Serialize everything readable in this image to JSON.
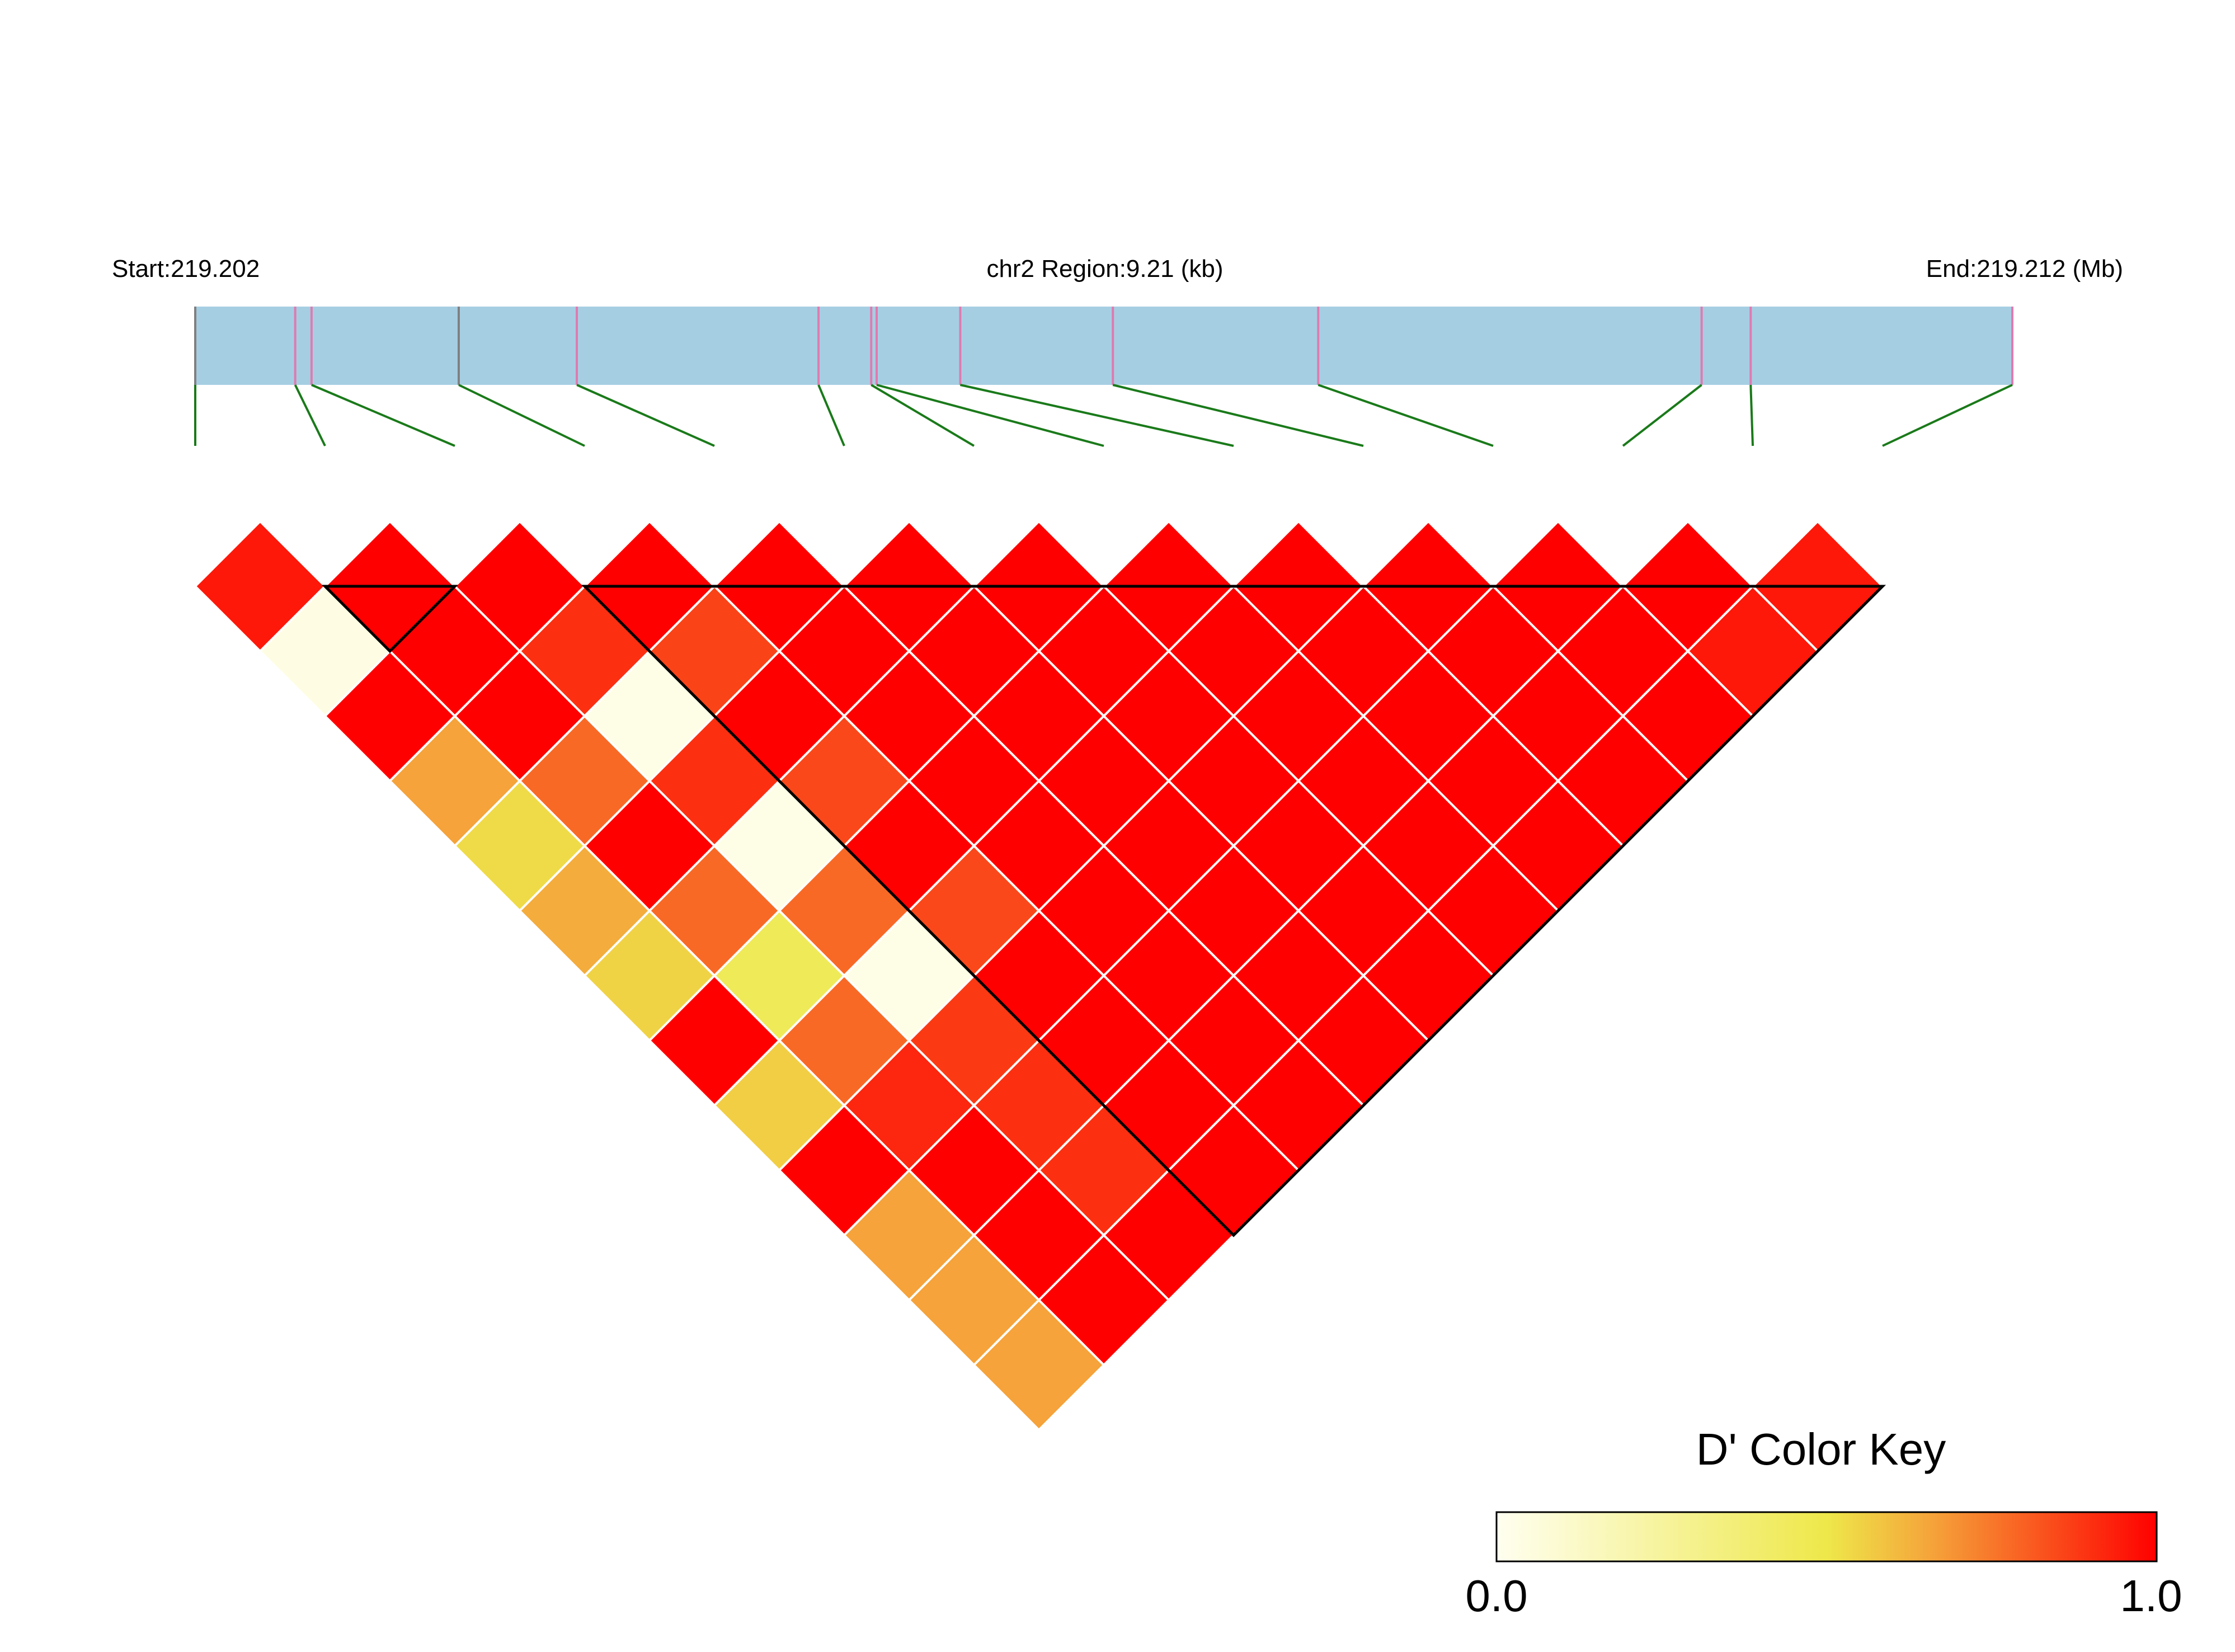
{
  "chart_data": {
    "type": "heatmap",
    "subtype": "LD triangle heatmap",
    "header": {
      "start_label": "Start:219.202",
      "region_label": "chr2 Region:9.21 (kb)",
      "end_label": "End:219.212 (Mb)"
    },
    "chromosome": "chr2",
    "region_start_mb": 219.202,
    "region_end_mb": 219.212,
    "region_length_kb": 9.21,
    "snp_count": 14,
    "snp_positions_frac": [
      0.0,
      0.055,
      0.064,
      0.145,
      0.21,
      0.343,
      0.372,
      0.375,
      0.421,
      0.505,
      0.618,
      0.829,
      0.856,
      1.0
    ],
    "snp_mark_colors": [
      "#808080",
      "#e07ab0",
      "#e07ab0",
      "#808080",
      "#e07ab0",
      "#e07ab0",
      "#e07ab0",
      "#e07ab0",
      "#e07ab0",
      "#e07ab0",
      "#e07ab0",
      "#e07ab0",
      "#e07ab0",
      "#e07ab0"
    ],
    "ld_metric": "D'",
    "dprime_by_diagonal": [
      [
        0.95,
        1.0,
        1.0,
        1.0,
        1.0,
        1.0,
        1.0,
        1.0,
        1.0,
        1.0,
        1.0,
        1.0,
        0.95
      ],
      [
        0.04,
        1.0,
        0.9,
        0.86,
        1.0,
        1.0,
        1.0,
        1.0,
        1.0,
        1.0,
        1.0,
        0.95
      ],
      [
        1.0,
        1.0,
        0.03,
        1.0,
        1.0,
        1.0,
        1.0,
        1.0,
        1.0,
        1.0,
        1.0
      ],
      [
        0.66,
        0.78,
        0.9,
        0.85,
        1.0,
        1.0,
        1.0,
        1.0,
        1.0,
        1.0
      ],
      [
        0.53,
        1.0,
        0.03,
        1.0,
        1.0,
        1.0,
        1.0,
        1.0,
        1.0
      ],
      [
        0.64,
        0.78,
        0.78,
        0.85,
        1.0,
        1.0,
        1.0,
        1.0
      ],
      [
        0.55,
        0.46,
        0.03,
        1.0,
        1.0,
        1.0,
        1.0
      ],
      [
        1.0,
        0.78,
        0.88,
        1.0,
        1.0,
        1.0
      ],
      [
        0.56,
        0.92,
        0.9,
        1.0,
        1.0
      ],
      [
        1.0,
        1.0,
        0.9,
        1.0
      ],
      [
        0.66,
        1.0,
        1.0
      ],
      [
        0.66,
        1.0
      ],
      [
        0.66
      ]
    ],
    "blocks": [
      [
        1,
        2
      ],
      [
        3,
        13
      ]
    ],
    "color_key": {
      "title": "D' Color Key",
      "min_label": "0.0",
      "max_label": "1.0",
      "range": [
        0.0,
        1.0
      ],
      "stops": [
        "#fffff0",
        "#eee84a",
        "#f5a33a",
        "#ff0000"
      ]
    }
  },
  "colors": {
    "track_fill": "#a6cee3",
    "connector": "#1a7a1a",
    "cell_border": "#ffffff",
    "block_outline": "#000000"
  }
}
